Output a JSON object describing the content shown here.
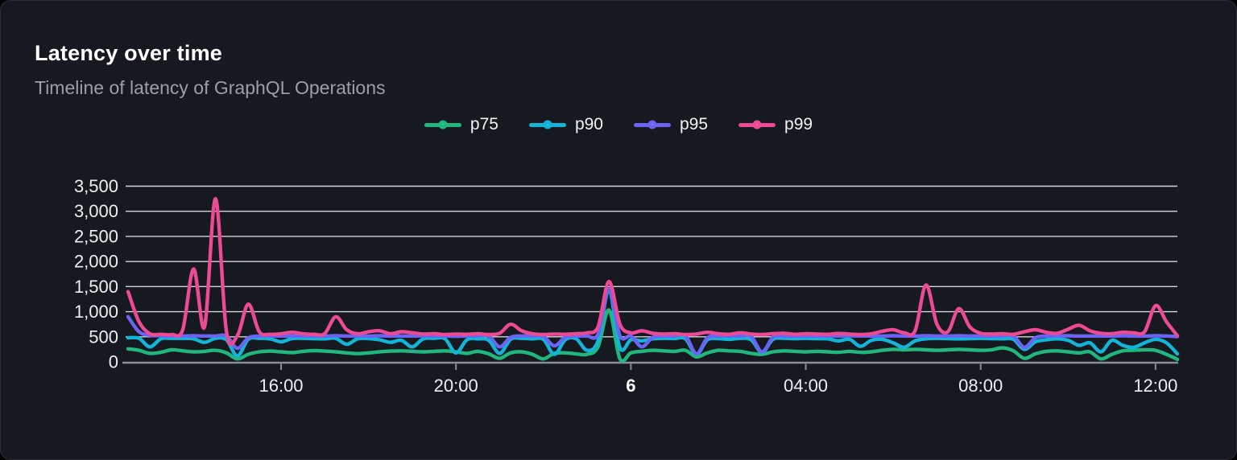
{
  "header": {
    "title": "Latency over time",
    "subtitle": "Timeline of latency of GraphQL Operations"
  },
  "chart_data": {
    "type": "line",
    "title": "Latency over time",
    "subtitle": "Timeline of latency of GraphQL Operations",
    "xlabel": "",
    "ylabel": "",
    "ylim": [
      0,
      3500
    ],
    "y_tick_labels": [
      "0",
      "500",
      "1,000",
      "1,500",
      "2,000",
      "2,500",
      "3,000",
      "3,500"
    ],
    "grid": true,
    "legend_position": "top-center",
    "x_unit": "hours elapsed (window ~12:30 to 12:30 next day)",
    "x_range": [
      0,
      24
    ],
    "sample_step_hours": 0.25,
    "x_ticks": [
      {
        "t": 3.5,
        "label": "16:00",
        "bold": false
      },
      {
        "t": 7.5,
        "label": "20:00",
        "bold": false
      },
      {
        "t": 11.5,
        "label": "6",
        "bold": true
      },
      {
        "t": 15.5,
        "label": "04:00",
        "bold": false
      },
      {
        "t": 19.5,
        "label": "08:00",
        "bold": false
      },
      {
        "t": 23.5,
        "label": "12:00",
        "bold": false
      }
    ],
    "colors": {
      "grid": "#e4e6e9",
      "axis": "#8a8e95",
      "tick_label": "#eceef0",
      "tick_label_bold": "#ffffff"
    },
    "series": [
      {
        "name": "p75",
        "color": "#1fb77e",
        "values": [
          260,
          230,
          170,
          190,
          240,
          220,
          200,
          210,
          230,
          180,
          60,
          150,
          200,
          215,
          200,
          185,
          210,
          225,
          215,
          200,
          180,
          165,
          180,
          200,
          215,
          220,
          210,
          200,
          210,
          220,
          200,
          170,
          210,
          160,
          70,
          180,
          200,
          150,
          60,
          170,
          180,
          160,
          150,
          300,
          1030,
          60,
          180,
          210,
          230,
          220,
          210,
          230,
          100,
          180,
          230,
          220,
          210,
          170,
          150,
          200,
          220,
          210,
          200,
          210,
          200,
          190,
          210,
          190,
          200,
          230,
          250,
          240,
          250,
          240,
          230,
          240,
          250,
          240,
          230,
          240,
          280,
          220,
          70,
          160,
          210,
          220,
          200,
          180,
          200,
          60,
          150,
          220,
          230,
          240,
          230,
          150,
          50
        ]
      },
      {
        "name": "p90",
        "color": "#12b5d8",
        "values": [
          480,
          470,
          300,
          460,
          470,
          470,
          460,
          390,
          470,
          440,
          120,
          450,
          470,
          460,
          400,
          465,
          470,
          465,
          460,
          470,
          350,
          460,
          465,
          440,
          390,
          430,
          300,
          460,
          470,
          460,
          180,
          440,
          460,
          430,
          170,
          450,
          470,
          460,
          450,
          150,
          440,
          460,
          230,
          420,
          1430,
          280,
          440,
          420,
          460,
          470,
          465,
          460,
          150,
          440,
          465,
          450,
          470,
          440,
          190,
          450,
          470,
          465,
          470,
          465,
          460,
          420,
          450,
          310,
          430,
          450,
          380,
          290,
          420,
          460,
          470,
          465,
          460,
          465,
          470,
          465,
          460,
          450,
          250,
          400,
          440,
          460,
          430,
          330,
          380,
          200,
          430,
          330,
          290,
          380,
          450,
          380,
          160
        ]
      },
      {
        "name": "p95",
        "color": "#6b63f2",
        "values": [
          900,
          600,
          530,
          520,
          515,
          515,
          520,
          515,
          515,
          515,
          270,
          480,
          515,
          520,
          515,
          515,
          520,
          515,
          515,
          520,
          515,
          515,
          515,
          520,
          515,
          515,
          515,
          520,
          515,
          515,
          510,
          515,
          520,
          515,
          300,
          490,
          515,
          515,
          510,
          320,
          490,
          515,
          515,
          550,
          1450,
          520,
          515,
          300,
          490,
          515,
          515,
          520,
          160,
          480,
          515,
          520,
          515,
          510,
          200,
          490,
          515,
          515,
          520,
          515,
          515,
          515,
          520,
          515,
          515,
          515,
          520,
          515,
          515,
          520,
          515,
          515,
          520,
          515,
          515,
          515,
          520,
          515,
          290,
          480,
          515,
          515,
          520,
          515,
          515,
          515,
          515,
          520,
          515,
          515,
          520,
          515,
          505
        ]
      },
      {
        "name": "p99",
        "color": "#ec4a94",
        "values": [
          1400,
          800,
          560,
          550,
          545,
          640,
          1850,
          700,
          3250,
          600,
          520,
          1150,
          600,
          550,
          560,
          590,
          560,
          550,
          565,
          900,
          640,
          560,
          600,
          620,
          560,
          600,
          580,
          555,
          560,
          545,
          555,
          550,
          560,
          545,
          570,
          750,
          620,
          560,
          545,
          555,
          550,
          560,
          580,
          700,
          1600,
          750,
          580,
          620,
          570,
          555,
          560,
          545,
          555,
          590,
          560,
          550,
          580,
          555,
          545,
          560,
          570,
          550,
          560,
          555,
          550,
          565,
          555,
          545,
          560,
          610,
          640,
          580,
          620,
          1530,
          750,
          600,
          1060,
          700,
          570,
          555,
          560,
          550,
          600,
          640,
          590,
          570,
          650,
          730,
          620,
          570,
          560,
          590,
          580,
          600,
          1120,
          800,
          520
        ]
      }
    ]
  }
}
